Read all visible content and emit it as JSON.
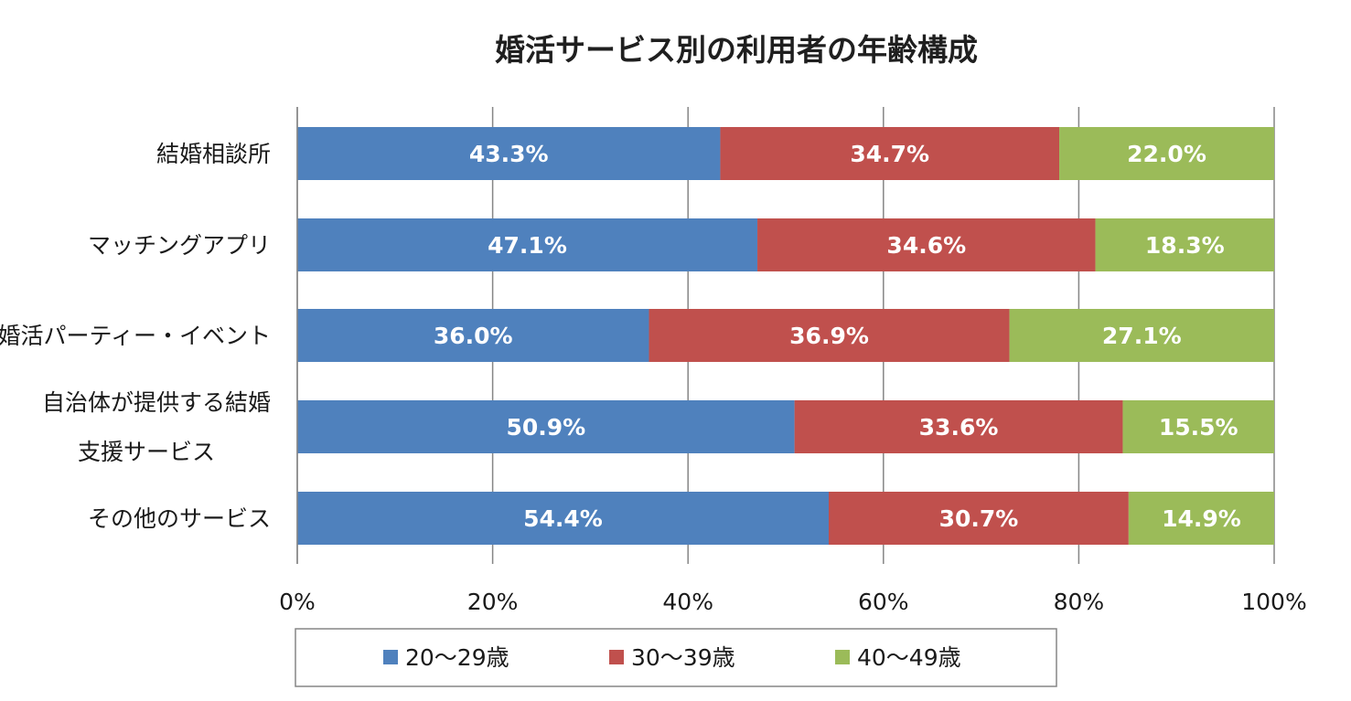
{
  "chart_data": {
    "type": "bar",
    "orientation": "horizontal",
    "stacked": "percent",
    "title": "婚活サービス別の利用者の年齢構成",
    "xlabel": "",
    "ylabel": "",
    "xlim": [
      0,
      100
    ],
    "grid": true,
    "legend_position": "bottom",
    "categories": [
      [
        "結婚相談所"
      ],
      [
        "マッチングアプリ"
      ],
      [
        "婚活パーティー・イベント"
      ],
      [
        "自治体が提供する結婚",
        "支援サービス"
      ],
      [
        "その他のサービス"
      ]
    ],
    "ticks": [
      "0%",
      "20%",
      "40%",
      "60%",
      "80%",
      "100%"
    ],
    "series": [
      {
        "name": "20～29歳",
        "color": "#4f81bd",
        "values": [
          43.3,
          47.1,
          36.0,
          50.9,
          54.4
        ],
        "labels": [
          "43.3%",
          "47.1%",
          "36.0%",
          "50.9%",
          "54.4%"
        ]
      },
      {
        "name": "30～39歳",
        "color": "#c0504d",
        "values": [
          34.7,
          34.6,
          36.9,
          33.6,
          30.7
        ],
        "labels": [
          "34.7%",
          "34.6%",
          "36.9%",
          "33.6%",
          "30.7%"
        ]
      },
      {
        "name": "40～49歳",
        "color": "#9bbb59",
        "values": [
          22.0,
          18.3,
          27.1,
          15.5,
          14.9
        ],
        "labels": [
          "22.0%",
          "18.3%",
          "27.1%",
          "15.5%",
          "14.9%"
        ]
      }
    ]
  }
}
